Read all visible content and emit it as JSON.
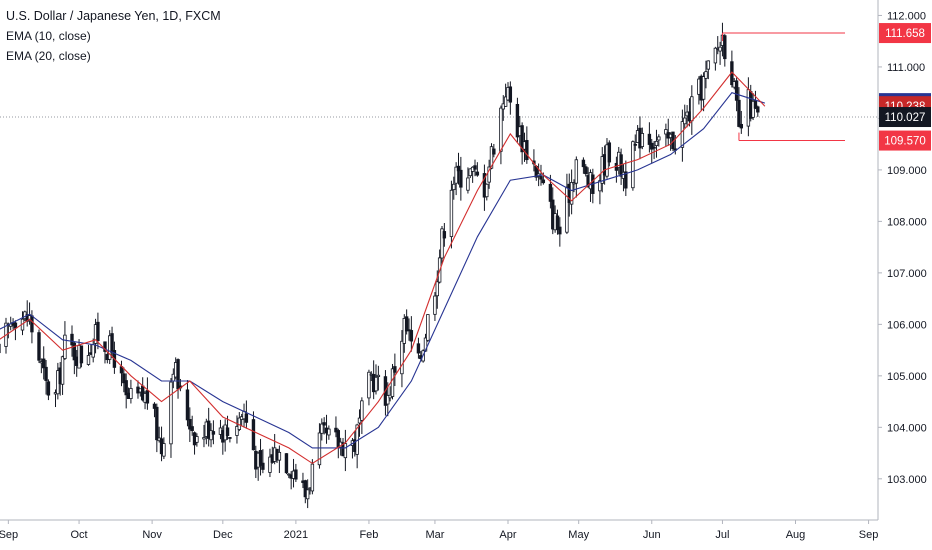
{
  "legend": {
    "title": "U.S. Dollar / Japanese Yen, 1D, FXCM",
    "ema10": "EMA (10, close)",
    "ema20": "EMA (20, close)"
  },
  "colors": {
    "bull": "#ffffff",
    "bear": "#131722",
    "ema10": "#d32f2f",
    "ema20": "#283593",
    "range": "#f23645",
    "grid_dotted": "#9598a1"
  },
  "chart_data": {
    "type": "candlestick",
    "symbol": "U.S. Dollar / Japanese Yen, 1D, FXCM",
    "ylim": [
      102.2,
      112.3
    ],
    "y_ticks": [
      "103.000",
      "104.000",
      "105.000",
      "106.000",
      "107.000",
      "108.000",
      "109.000",
      "110.000",
      "111.000",
      "112.000"
    ],
    "y_tick_values": [
      103,
      104,
      105,
      106,
      107,
      108,
      109,
      110,
      111,
      112
    ],
    "x_ticks": [
      "Sep",
      "Oct",
      "Nov",
      "Dec",
      "2021",
      "Feb",
      "Mar",
      "Apr",
      "May",
      "Jun",
      "Jul",
      "Aug",
      "Sep"
    ],
    "x_tick_dates": [
      "2020-09-01",
      "2020-10-01",
      "2020-11-01",
      "2020-12-01",
      "2021-01-01",
      "2021-02-01",
      "2021-03-01",
      "2021-04-01",
      "2021-05-01",
      "2021-06-01",
      "2021-07-01",
      "2021-08-01",
      "2021-09-01"
    ],
    "x_range": [
      "2020-08-31",
      "2021-09-05"
    ],
    "close_path": [
      [
        "2020-08-28",
        105.4
      ],
      [
        "2020-09-03",
        106.2
      ],
      [
        "2020-09-10",
        106.1
      ],
      [
        "2020-09-17",
        104.8
      ],
      [
        "2020-09-21",
        104.6
      ],
      [
        "2020-09-25",
        105.6
      ],
      [
        "2020-10-02",
        105.4
      ],
      [
        "2020-10-09",
        105.8
      ],
      [
        "2020-10-16",
        105.4
      ],
      [
        "2020-10-21",
        104.5
      ],
      [
        "2020-10-30",
        104.6
      ],
      [
        "2020-11-05",
        103.6
      ],
      [
        "2020-11-10",
        105.3
      ],
      [
        "2020-11-13",
        104.6
      ],
      [
        "2020-11-20",
        103.8
      ],
      [
        "2020-11-27",
        104.1
      ],
      [
        "2020-12-03",
        103.9
      ],
      [
        "2020-12-10",
        104.3
      ],
      [
        "2020-12-17",
        103.1
      ],
      [
        "2020-12-24",
        103.6
      ],
      [
        "2020-12-31",
        103.2
      ],
      [
        "2021-01-05",
        102.7
      ],
      [
        "2021-01-12",
        103.8
      ],
      [
        "2021-01-19",
        103.7
      ],
      [
        "2021-01-26",
        103.7
      ],
      [
        "2021-02-02",
        105.0
      ],
      [
        "2021-02-09",
        104.6
      ],
      [
        "2021-02-16",
        106.0
      ],
      [
        "2021-02-22",
        105.2
      ],
      [
        "2021-03-01",
        106.8
      ],
      [
        "2021-03-08",
        108.8
      ],
      [
        "2021-03-15",
        109.0
      ],
      [
        "2021-03-22",
        108.7
      ],
      [
        "2021-03-31",
        110.6
      ],
      [
        "2021-04-06",
        109.7
      ],
      [
        "2021-04-13",
        109.0
      ],
      [
        "2021-04-20",
        108.1
      ],
      [
        "2021-04-23",
        107.8
      ],
      [
        "2021-04-30",
        109.2
      ],
      [
        "2021-05-07",
        108.6
      ],
      [
        "2021-05-14",
        109.4
      ],
      [
        "2021-05-21",
        108.9
      ],
      [
        "2021-05-28",
        109.8
      ],
      [
        "2021-06-04",
        109.5
      ],
      [
        "2021-06-11",
        109.6
      ],
      [
        "2021-06-18",
        110.2
      ],
      [
        "2021-06-24",
        110.8
      ],
      [
        "2021-07-01",
        111.6
      ],
      [
        "2021-07-05",
        110.9
      ],
      [
        "2021-07-08",
        109.7
      ],
      [
        "2021-07-12",
        110.3
      ],
      [
        "2021-07-16",
        110.0
      ]
    ],
    "ema10_path": [
      [
        "2020-08-28",
        105.7
      ],
      [
        "2020-09-10",
        106.1
      ],
      [
        "2020-09-24",
        105.5
      ],
      [
        "2020-10-08",
        105.7
      ],
      [
        "2020-10-23",
        105.0
      ],
      [
        "2020-11-05",
        104.5
      ],
      [
        "2020-11-17",
        104.9
      ],
      [
        "2020-12-01",
        104.2
      ],
      [
        "2020-12-15",
        103.9
      ],
      [
        "2020-12-29",
        103.6
      ],
      [
        "2021-01-08",
        103.3
      ],
      [
        "2021-01-22",
        103.7
      ],
      [
        "2021-02-05",
        104.5
      ],
      [
        "2021-02-19",
        105.5
      ],
      [
        "2021-03-05",
        107.3
      ],
      [
        "2021-03-19",
        108.6
      ],
      [
        "2021-04-02",
        109.7
      ],
      [
        "2021-04-16",
        108.9
      ],
      [
        "2021-04-28",
        108.4
      ],
      [
        "2021-05-12",
        109.0
      ],
      [
        "2021-05-26",
        109.2
      ],
      [
        "2021-06-09",
        109.5
      ],
      [
        "2021-06-23",
        110.2
      ],
      [
        "2021-07-05",
        110.9
      ],
      [
        "2021-07-19",
        110.238
      ]
    ],
    "ema20_path": [
      [
        "2020-08-28",
        105.9
      ],
      [
        "2020-09-10",
        106.2
      ],
      [
        "2020-09-24",
        105.7
      ],
      [
        "2020-10-08",
        105.6
      ],
      [
        "2020-10-23",
        105.3
      ],
      [
        "2020-11-05",
        104.9
      ],
      [
        "2020-11-17",
        104.9
      ],
      [
        "2020-12-01",
        104.5
      ],
      [
        "2020-12-15",
        104.2
      ],
      [
        "2020-12-29",
        103.9
      ],
      [
        "2021-01-08",
        103.6
      ],
      [
        "2021-01-22",
        103.6
      ],
      [
        "2021-02-05",
        104.0
      ],
      [
        "2021-02-19",
        104.9
      ],
      [
        "2021-03-05",
        106.3
      ],
      [
        "2021-03-19",
        107.7
      ],
      [
        "2021-04-02",
        108.8
      ],
      [
        "2021-04-16",
        108.9
      ],
      [
        "2021-04-28",
        108.6
      ],
      [
        "2021-05-12",
        108.8
      ],
      [
        "2021-05-26",
        109.0
      ],
      [
        "2021-06-09",
        109.3
      ],
      [
        "2021-06-23",
        109.8
      ],
      [
        "2021-07-05",
        110.5
      ],
      [
        "2021-07-19",
        110.297
      ]
    ],
    "range_high": {
      "value": 111.658,
      "label": "111.658",
      "from": "2021-07-01",
      "to": "2021-08-22"
    },
    "range_low": {
      "value": 109.57,
      "label": "109.570",
      "from": "2021-07-08",
      "to": "2021-08-22"
    },
    "price_labels": [
      {
        "value": 111.658,
        "label": "111.658",
        "color": "#f23645"
      },
      {
        "value": 110.297,
        "label": "110.297",
        "color": "#283593"
      },
      {
        "value": 110.238,
        "label": "110.238",
        "color": "#c62828"
      },
      {
        "value": 110.027,
        "label": "110.027",
        "color": "#131722"
      },
      {
        "value": 109.57,
        "label": "109.570",
        "color": "#f23645"
      }
    ],
    "current_price": 110.027
  }
}
